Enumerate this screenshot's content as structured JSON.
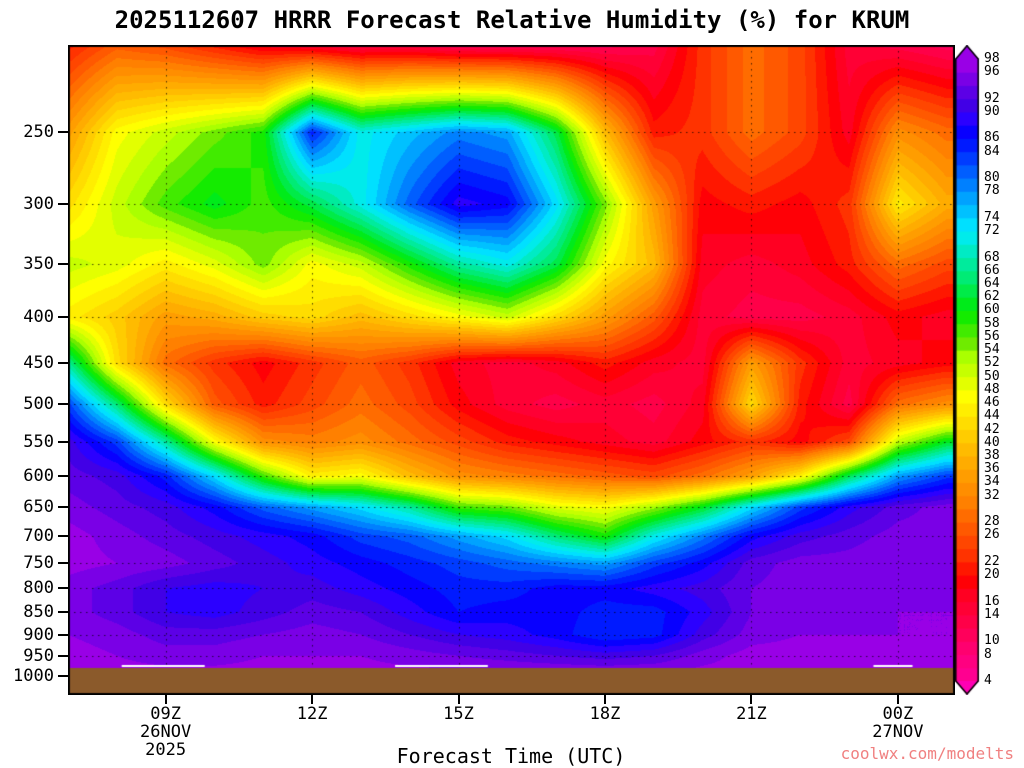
{
  "title": "2025112607 HRRR Forecast Relative Humidity (%) for KRUM",
  "watermark": {
    "text": "coolwx.com/modelts",
    "color": "#F08080"
  },
  "chart_data": {
    "type": "heatmap",
    "title": "2025112607 HRRR Forecast Relative Humidity (%) for KRUM",
    "xlabel": "Forecast Time (UTC)",
    "legend_position": "right",
    "grid_on": true,
    "x_range_hours": [
      7,
      25.17
    ],
    "x_ticks": [
      {
        "hour": 9,
        "label": "09Z",
        "sub": [
          "26NOV",
          "2025"
        ]
      },
      {
        "hour": 12,
        "label": "12Z",
        "sub": []
      },
      {
        "hour": 15,
        "label": "15Z",
        "sub": []
      },
      {
        "hour": 18,
        "label": "18Z",
        "sub": []
      },
      {
        "hour": 21,
        "label": "21Z",
        "sub": []
      },
      {
        "hour": 24,
        "label": "00Z",
        "sub": [
          "27NOV"
        ]
      }
    ],
    "pressure_range": [
      200,
      1050
    ],
    "pressure_ticks": [
      250,
      300,
      350,
      400,
      450,
      500,
      550,
      600,
      650,
      700,
      750,
      800,
      850,
      900,
      950,
      1000
    ],
    "colorbar": {
      "min": 2,
      "max": 100,
      "step": 2,
      "tick_labels": [
        98,
        96,
        92,
        90,
        86,
        84,
        80,
        78,
        74,
        72,
        68,
        66,
        64,
        62,
        60,
        58,
        56,
        54,
        52,
        50,
        48,
        46,
        44,
        42,
        40,
        38,
        36,
        34,
        32,
        28,
        26,
        22,
        20,
        16,
        14,
        10,
        8,
        4
      ]
    },
    "color_anchors_rh_hue": [
      [
        2,
        318
      ],
      [
        10,
        334
      ],
      [
        18,
        352
      ],
      [
        24,
        372
      ],
      [
        32,
        390
      ],
      [
        40,
        404
      ],
      [
        48,
        420
      ],
      [
        54,
        440
      ],
      [
        60,
        475
      ],
      [
        66,
        510
      ],
      [
        72,
        540
      ],
      [
        78,
        562
      ],
      [
        84,
        586
      ],
      [
        90,
        610
      ],
      [
        94,
        624
      ],
      [
        98,
        640
      ]
    ],
    "terrain": {
      "top_hpa": 980,
      "color": "#8B5A2B"
    },
    "surface_line_hpa": 975,
    "surface_line_segments_hours": [
      [
        8.1,
        9.8
      ],
      [
        13.7,
        15.6
      ],
      [
        23.5,
        24.3
      ]
    ],
    "grid": {
      "times_utc_hours": [
        7,
        8,
        9,
        10,
        11,
        12,
        13,
        14,
        15,
        16,
        17,
        18,
        19,
        20,
        21,
        22,
        23,
        24,
        25
      ],
      "pressures_hpa": [
        200,
        250,
        300,
        350,
        400,
        450,
        500,
        550,
        600,
        650,
        700,
        750,
        800,
        850,
        900,
        950,
        1000
      ],
      "rh_percent": [
        [
          22,
          28,
          26,
          22,
          18,
          16,
          14,
          14,
          12,
          12,
          12,
          12,
          14,
          24,
          30,
          26,
          16,
          14,
          12
        ],
        [
          36,
          48,
          52,
          56,
          60,
          86,
          72,
          76,
          80,
          78,
          64,
          40,
          22,
          24,
          30,
          26,
          18,
          34,
          30
        ],
        [
          44,
          52,
          58,
          62,
          58,
          64,
          72,
          82,
          90,
          88,
          74,
          56,
          36,
          20,
          22,
          20,
          24,
          46,
          38
        ],
        [
          52,
          50,
          46,
          50,
          56,
          48,
          52,
          60,
          68,
          72,
          64,
          48,
          40,
          18,
          16,
          18,
          22,
          30,
          26
        ],
        [
          46,
          42,
          36,
          38,
          42,
          44,
          40,
          44,
          48,
          52,
          44,
          36,
          28,
          16,
          14,
          14,
          16,
          20,
          18
        ],
        [
          68,
          44,
          30,
          24,
          20,
          24,
          28,
          24,
          18,
          16,
          18,
          22,
          18,
          16,
          36,
          24,
          16,
          18,
          20
        ],
        [
          84,
          66,
          44,
          28,
          22,
          26,
          30,
          26,
          20,
          16,
          14,
          16,
          14,
          18,
          44,
          22,
          14,
          30,
          34
        ],
        [
          92,
          84,
          68,
          48,
          34,
          32,
          34,
          30,
          26,
          22,
          20,
          18,
          16,
          20,
          24,
          20,
          26,
          52,
          62
        ],
        [
          94,
          92,
          86,
          74,
          58,
          46,
          48,
          40,
          34,
          32,
          30,
          28,
          26,
          30,
          36,
          46,
          64,
          78,
          84
        ],
        [
          96,
          94,
          92,
          88,
          82,
          78,
          74,
          68,
          58,
          56,
          50,
          48,
          54,
          62,
          74,
          84,
          90,
          94,
          96
        ],
        [
          98,
          96,
          94,
          92,
          90,
          88,
          84,
          82,
          78,
          74,
          66,
          60,
          72,
          80,
          88,
          92,
          94,
          96,
          96
        ],
        [
          98,
          97,
          96,
          94,
          92,
          90,
          88,
          86,
          84,
          82,
          80,
          78,
          84,
          88,
          94,
          96,
          96,
          97,
          97
        ],
        [
          96,
          94,
          91,
          90,
          91,
          92,
          90,
          88,
          86,
          86,
          88,
          88,
          90,
          92,
          95,
          96,
          96,
          96,
          96
        ],
        [
          96,
          94,
          91,
          90,
          92,
          94,
          93,
          90,
          87,
          88,
          88,
          86,
          86,
          90,
          95,
          96,
          96,
          97,
          97
        ],
        [
          97,
          96,
          94,
          94,
          95,
          96,
          95,
          93,
          91,
          90,
          88,
          85,
          86,
          92,
          96,
          97,
          97,
          97,
          97
        ],
        [
          98,
          97,
          96,
          96,
          97,
          97,
          97,
          96,
          95,
          94,
          93,
          92,
          93,
          96,
          98,
          98,
          98,
          98,
          98
        ],
        [
          98,
          98,
          98,
          98,
          98,
          98,
          98,
          98,
          98,
          98,
          98,
          98,
          98,
          98,
          98,
          98,
          98,
          98,
          98
        ]
      ]
    }
  }
}
